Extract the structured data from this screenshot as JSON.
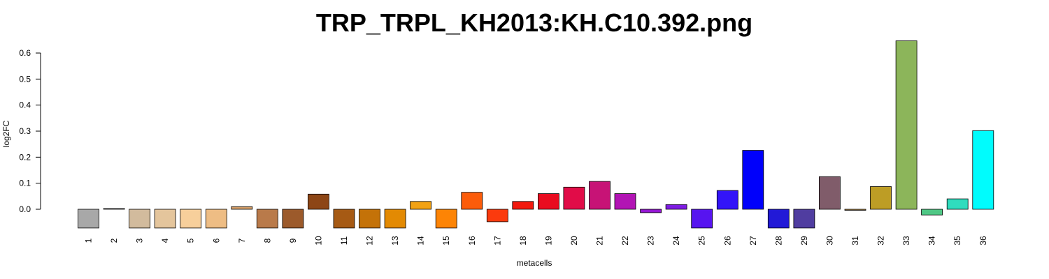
{
  "chart_data": {
    "type": "bar",
    "title": "TRP_TRPL_KH2013:KH.C10.392.png",
    "xlabel": "metacells",
    "ylabel": "log2FC",
    "ylim": [
      -0.07,
      0.65
    ],
    "yticks": [
      "0.0",
      "0.1",
      "0.2",
      "0.3",
      "0.4",
      "0.5",
      "0.6"
    ],
    "grid": false,
    "categories": [
      "1",
      "2",
      "3",
      "4",
      "5",
      "6",
      "7",
      "8",
      "9",
      "10",
      "11",
      "12",
      "13",
      "14",
      "15",
      "16",
      "17",
      "18",
      "19",
      "20",
      "21",
      "22",
      "23",
      "24",
      "25",
      "26",
      "27",
      "28",
      "29",
      "30",
      "31",
      "32",
      "33",
      "34",
      "35",
      "36"
    ],
    "values": [
      -0.072,
      0.003,
      -0.072,
      -0.072,
      -0.072,
      -0.072,
      0.01,
      -0.072,
      -0.072,
      0.058,
      -0.072,
      -0.072,
      -0.072,
      0.03,
      -0.072,
      0.065,
      -0.048,
      0.03,
      0.06,
      0.085,
      0.107,
      0.06,
      -0.013,
      0.018,
      -0.072,
      0.072,
      0.226,
      -0.072,
      -0.072,
      0.125,
      -0.004,
      0.087,
      0.647,
      -0.022,
      0.04,
      0.302
    ],
    "colors": [
      "#a8a8a8",
      "#c8c8c8",
      "#d2bb9d",
      "#e4c59c",
      "#f7cf9b",
      "#eebd84",
      "#d59f69",
      "#b97a4a",
      "#9c5a2b",
      "#8d4616",
      "#a65a14",
      "#c47208",
      "#e38a03",
      "#f2a213",
      "#fd8405",
      "#fc5c0a",
      "#fb3a0d",
      "#f2190e",
      "#e90c20",
      "#e10c48",
      "#c71376",
      "#b214b4",
      "#9415d2",
      "#7e1ce2",
      "#5714f0",
      "#3314f8",
      "#0000fb",
      "#2219d7",
      "#503da0",
      "#805c6a",
      "#a17d43",
      "#bd9d25",
      "#8cb55a",
      "#4fc785",
      "#30dcbe",
      "#00fcfd"
    ]
  }
}
